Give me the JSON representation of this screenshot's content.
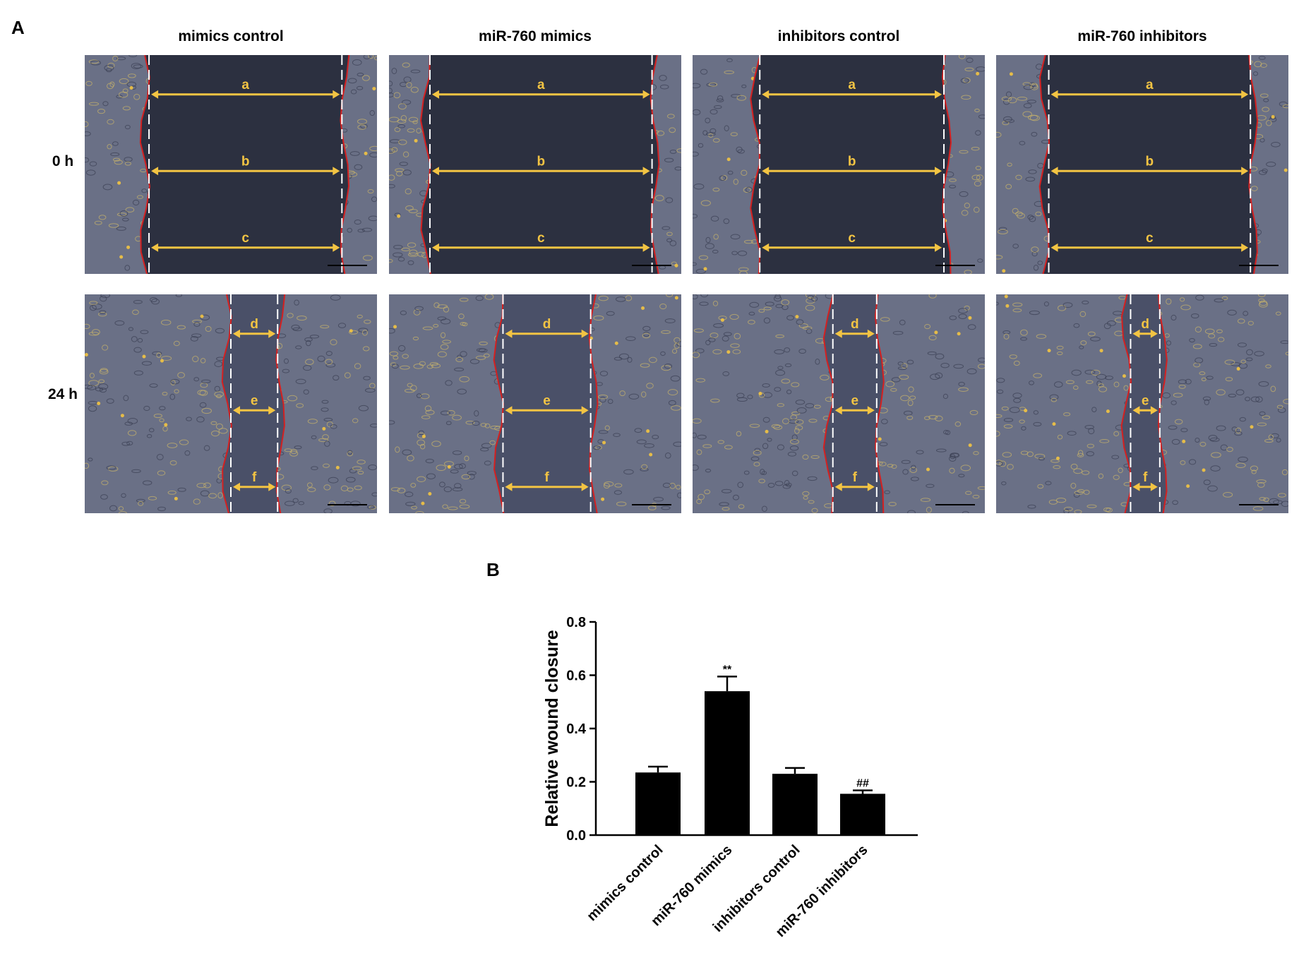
{
  "panel_a": {
    "label": "A",
    "columns": [
      "mimics control",
      "miR-760 mimics",
      "inhibitors control",
      "miR-760 inhibitors"
    ],
    "rows": [
      "0 h",
      "24 h"
    ],
    "gap_labels_0h": [
      "a",
      "b",
      "c"
    ],
    "gap_labels_24h": [
      "d",
      "e",
      "f"
    ],
    "colors": {
      "wound_edge": "#d42020",
      "reference_line": "#ffffff",
      "measure_arrow": "#f3c443",
      "gap_0h": "#2c3040",
      "cells": "#6a7086"
    }
  },
  "panel_b": {
    "label": "B",
    "chart_data": {
      "type": "bar",
      "title": "",
      "xlabel": "",
      "ylabel": "Relative wound closure",
      "categories": [
        "mimics control",
        "miR-760 mimics",
        "inhibitors control",
        "miR-760 inhibitors"
      ],
      "values": [
        0.235,
        0.54,
        0.23,
        0.155
      ],
      "errors": [
        0.022,
        0.055,
        0.022,
        0.013
      ],
      "annotations": [
        "",
        "**",
        "",
        "##"
      ],
      "ylim": [
        0.0,
        0.8
      ],
      "yticks": [
        "0.0",
        "0.2",
        "0.4",
        "0.6",
        "0.8"
      ],
      "grid": false,
      "bar_color": "#000000"
    }
  }
}
